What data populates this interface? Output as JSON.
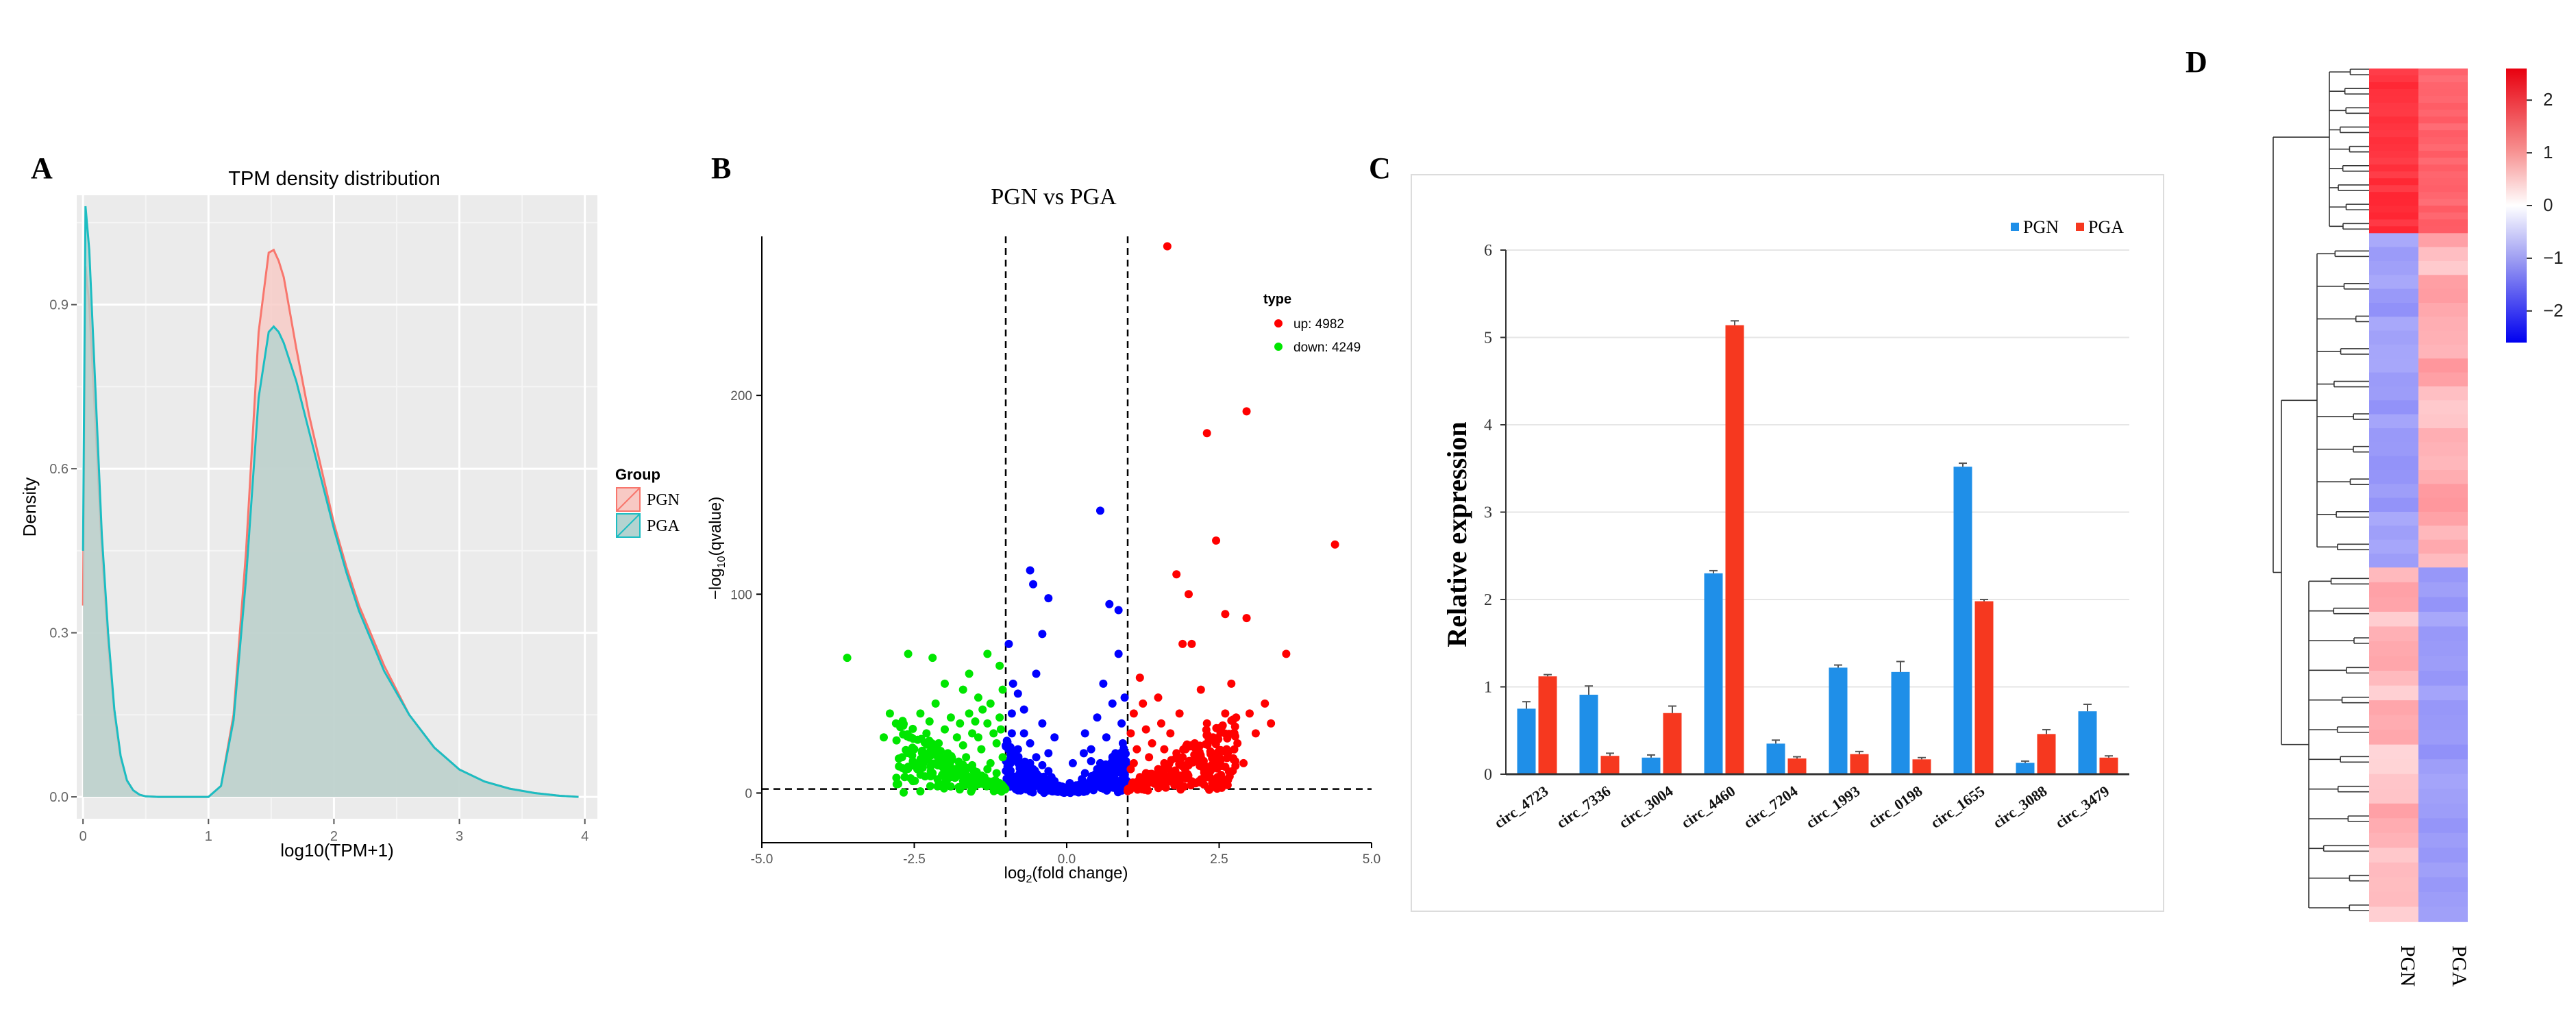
{
  "panels": {
    "a": "A",
    "b": "B",
    "c": "C",
    "d": "D"
  },
  "chart_data": [
    {
      "type": "area",
      "panel": "A",
      "title": "TPM density distribution",
      "xlabel": "log10(TPM+1)",
      "ylabel": "Density",
      "xlim": [
        -0.05,
        4.1
      ],
      "ylim": [
        -0.04,
        1.1
      ],
      "xticks": [
        "0",
        "1",
        "2",
        "3",
        "4"
      ],
      "yticks": [
        "0.0",
        "0.3",
        "0.6",
        "0.9"
      ],
      "legend": {
        "title": "Group",
        "position": "right",
        "items": [
          "PGN",
          "PGA"
        ]
      },
      "series": [
        {
          "name": "PGN",
          "color": "#F8766D",
          "fill": "#F8C9C4",
          "x": [
            0,
            0.02,
            0.05,
            0.1,
            0.15,
            0.2,
            0.25,
            0.3,
            0.35,
            0.4,
            0.45,
            0.5,
            0.6,
            0.8,
            1.0,
            1.1,
            1.2,
            1.3,
            1.4,
            1.48,
            1.52,
            1.56,
            1.6,
            1.7,
            1.8,
            1.9,
            2.0,
            2.1,
            2.2,
            2.4,
            2.6,
            2.8,
            3.0,
            3.2,
            3.4,
            3.6,
            3.8,
            3.95
          ],
          "y": [
            0.35,
            0.97,
            0.9,
            0.68,
            0.45,
            0.28,
            0.15,
            0.07,
            0.03,
            0.012,
            0.004,
            0.001,
            0,
            0,
            0,
            0.02,
            0.15,
            0.45,
            0.85,
            0.995,
            1.0,
            0.98,
            0.95,
            0.82,
            0.7,
            0.6,
            0.5,
            0.42,
            0.35,
            0.24,
            0.15,
            0.09,
            0.05,
            0.028,
            0.015,
            0.007,
            0.002,
            0
          ]
        },
        {
          "name": "PGA",
          "color": "#1CBDC2",
          "fill": "#B4D3D0",
          "x": [
            0,
            0.02,
            0.05,
            0.1,
            0.15,
            0.2,
            0.25,
            0.3,
            0.35,
            0.4,
            0.45,
            0.5,
            0.6,
            0.8,
            1.0,
            1.1,
            1.2,
            1.3,
            1.4,
            1.48,
            1.52,
            1.56,
            1.6,
            1.7,
            1.8,
            1.9,
            2.0,
            2.1,
            2.2,
            2.4,
            2.6,
            2.8,
            3.0,
            3.2,
            3.4,
            3.6,
            3.8,
            3.95
          ],
          "y": [
            0.45,
            1.08,
            1.0,
            0.74,
            0.48,
            0.3,
            0.16,
            0.075,
            0.03,
            0.012,
            0.004,
            0.001,
            0,
            0,
            0,
            0.02,
            0.14,
            0.4,
            0.73,
            0.85,
            0.86,
            0.85,
            0.83,
            0.76,
            0.67,
            0.58,
            0.49,
            0.41,
            0.34,
            0.23,
            0.15,
            0.09,
            0.05,
            0.028,
            0.015,
            0.007,
            0.002,
            0
          ]
        }
      ]
    },
    {
      "type": "scatter",
      "panel": "B",
      "title": "PGN vs PGA",
      "xlabel_pre": "log",
      "xlabel_sub": "2",
      "xlabel_post": "(fold change)",
      "ylabel_pre": "−log",
      "ylabel_sub": "10",
      "ylabel_post": "(qvalue)",
      "xlim": [
        -5,
        5
      ],
      "ylim": [
        -25,
        280
      ],
      "xticks": [
        "-5.0",
        "-2.5",
        "0.0",
        "2.5",
        "5.0"
      ],
      "yticks": [
        "0",
        "100",
        "200"
      ],
      "fc_threshold": [
        -1,
        1
      ],
      "q_threshold": 2,
      "legend": {
        "title": "type",
        "position": "top-right",
        "items": [
          "up: 4982",
          "down: 4249"
        ]
      },
      "colors": {
        "up": "#FF0000",
        "down": "#00E600",
        "ns": "#0000FF"
      },
      "up_points": [
        [
          1.65,
          275
        ],
        [
          2.95,
          192
        ],
        [
          2.3,
          181
        ],
        [
          2.45,
          127
        ],
        [
          4.4,
          125
        ],
        [
          2.95,
          88
        ],
        [
          1.8,
          110
        ],
        [
          2.0,
          100
        ],
        [
          2.6,
          90
        ],
        [
          1.9,
          75
        ],
        [
          2.05,
          75
        ],
        [
          3.6,
          70
        ],
        [
          3.25,
          45
        ],
        [
          1.2,
          58
        ],
        [
          1.5,
          48
        ],
        [
          2.2,
          52
        ],
        [
          2.7,
          55
        ],
        [
          3.0,
          40
        ],
        [
          1.1,
          40
        ],
        [
          1.3,
          32
        ],
        [
          1.7,
          30
        ],
        [
          2.4,
          28
        ],
        [
          1.15,
          22
        ],
        [
          1.35,
          18
        ],
        [
          1.6,
          15
        ],
        [
          1.9,
          18
        ],
        [
          2.1,
          25
        ],
        [
          2.5,
          20
        ],
        [
          2.8,
          25
        ],
        [
          3.1,
          30
        ],
        [
          1.05,
          12
        ],
        [
          1.2,
          8
        ],
        [
          1.45,
          6
        ],
        [
          1.75,
          10
        ],
        [
          2.25,
          12
        ],
        [
          1.25,
          45
        ],
        [
          1.55,
          35
        ],
        [
          2.9,
          15
        ],
        [
          1.05,
          30
        ],
        [
          1.4,
          25
        ],
        [
          1.85,
          40
        ],
        [
          2.3,
          35
        ],
        [
          1.95,
          22
        ],
        [
          2.6,
          40
        ],
        [
          1.1,
          15
        ],
        [
          1.3,
          10
        ],
        [
          1.6,
          22
        ],
        [
          2.0,
          14
        ],
        [
          2.35,
          8
        ],
        [
          1.5,
          12
        ],
        [
          1.8,
          20
        ],
        [
          2.2,
          18
        ],
        [
          1.08,
          5
        ],
        [
          1.28,
          4
        ],
        [
          1.65,
          6
        ],
        [
          2.75,
          30
        ],
        [
          3.35,
          35
        ]
      ],
      "down_points": [
        [
          -3.6,
          68
        ],
        [
          -2.6,
          70
        ],
        [
          -2.2,
          68
        ],
        [
          -1.3,
          70
        ],
        [
          -1.1,
          64
        ],
        [
          -2.0,
          55
        ],
        [
          -1.7,
          52
        ],
        [
          -1.45,
          48
        ],
        [
          -2.8,
          35
        ],
        [
          -2.4,
          40
        ],
        [
          -3.0,
          28
        ],
        [
          -2.3,
          30
        ],
        [
          -1.9,
          38
        ],
        [
          -1.6,
          40
        ],
        [
          -1.25,
          45
        ],
        [
          -2.5,
          22
        ],
        [
          -2.1,
          25
        ],
        [
          -1.8,
          28
        ],
        [
          -1.55,
          30
        ],
        [
          -1.3,
          35
        ],
        [
          -1.1,
          38
        ],
        [
          -2.7,
          18
        ],
        [
          -2.35,
          15
        ],
        [
          -1.95,
          20
        ],
        [
          -1.65,
          18
        ],
        [
          -1.4,
          22
        ],
        [
          -1.15,
          25
        ],
        [
          -2.2,
          10
        ],
        [
          -1.85,
          12
        ],
        [
          -1.5,
          10
        ],
        [
          -1.25,
          15
        ],
        [
          -1.05,
          18
        ],
        [
          -1.7,
          6
        ],
        [
          -1.35,
          8
        ],
        [
          -1.1,
          5
        ],
        [
          -2.55,
          28
        ],
        [
          -2.0,
          32
        ],
        [
          -1.75,
          35
        ],
        [
          -1.45,
          28
        ],
        [
          -1.2,
          30
        ],
        [
          -2.9,
          40
        ],
        [
          -2.15,
          45
        ],
        [
          -1.6,
          60
        ],
        [
          -1.05,
          52
        ],
        [
          -1.3,
          12
        ],
        [
          -1.9,
          8
        ],
        [
          -2.45,
          12
        ],
        [
          -1.55,
          14
        ],
        [
          -1.15,
          10
        ],
        [
          -2.05,
          18
        ],
        [
          -1.38,
          42
        ],
        [
          -1.7,
          24
        ],
        [
          -2.25,
          36
        ],
        [
          -1.08,
          32
        ],
        [
          -1.5,
          36
        ]
      ],
      "ns_points": [
        [
          -0.6,
          112
        ],
        [
          -0.55,
          105
        ],
        [
          -0.3,
          98
        ],
        [
          0.55,
          142
        ],
        [
          0.7,
          95
        ],
        [
          0.85,
          92
        ],
        [
          -0.4,
          80
        ],
        [
          -0.95,
          75
        ],
        [
          -0.5,
          60
        ],
        [
          -0.8,
          50
        ],
        [
          0.6,
          55
        ],
        [
          0.85,
          70
        ],
        [
          -0.7,
          42
        ],
        [
          -0.4,
          35
        ],
        [
          -0.2,
          28
        ],
        [
          0.3,
          30
        ],
        [
          0.5,
          38
        ],
        [
          0.75,
          45
        ],
        [
          -0.9,
          30
        ],
        [
          -0.6,
          25
        ],
        [
          -0.3,
          20
        ],
        [
          0.1,
          15
        ],
        [
          0.4,
          22
        ],
        [
          0.65,
          28
        ],
        [
          0.9,
          35
        ],
        [
          -0.85,
          18
        ],
        [
          -0.55,
          12
        ],
        [
          -0.25,
          8
        ],
        [
          0.05,
          5
        ],
        [
          0.3,
          10
        ],
        [
          0.55,
          15
        ],
        [
          0.8,
          20
        ],
        [
          -0.75,
          8
        ],
        [
          -0.45,
          5
        ],
        [
          -0.15,
          3
        ],
        [
          0.15,
          2
        ],
        [
          0.35,
          4
        ],
        [
          0.6,
          8
        ],
        [
          0.85,
          12
        ],
        [
          -0.95,
          10
        ],
        [
          -0.65,
          4
        ],
        [
          -0.35,
          2
        ],
        [
          0.2,
          1
        ],
        [
          0.45,
          3
        ],
        [
          0.7,
          6
        ],
        [
          0.95,
          8
        ],
        [
          -0.9,
          40
        ],
        [
          -0.7,
          30
        ],
        [
          -0.5,
          18
        ],
        [
          -0.2,
          6
        ],
        [
          0.0,
          2
        ],
        [
          0.25,
          7
        ],
        [
          0.5,
          12
        ],
        [
          0.75,
          18
        ],
        [
          0.92,
          25
        ],
        [
          -0.8,
          22
        ],
        [
          -0.6,
          15
        ],
        [
          -0.1,
          1
        ],
        [
          0.1,
          3
        ],
        [
          0.65,
          10
        ],
        [
          -0.88,
          55
        ],
        [
          0.95,
          48
        ],
        [
          -0.4,
          14
        ],
        [
          0.4,
          16
        ],
        [
          -0.3,
          11
        ],
        [
          0.28,
          20
        ],
        [
          -0.05,
          1
        ],
        [
          0.05,
          1
        ],
        [
          0.92,
          15
        ],
        [
          -0.92,
          15
        ]
      ]
    },
    {
      "type": "bar",
      "panel": "C",
      "ylabel": "Relative expression",
      "ylim": [
        0,
        6
      ],
      "yticks": [
        "0",
        "1",
        "2",
        "3",
        "4",
        "5",
        "6"
      ],
      "categories": [
        "circ_4723",
        "circ_7336",
        "circ_3004",
        "circ_4460",
        "circ_7204",
        "circ_1993",
        "circ_0198",
        "circ_1655",
        "circ_3088",
        "circ_3479"
      ],
      "legend": {
        "position": "top-right"
      },
      "series": [
        {
          "name": "PGN",
          "color": "#1F8FE8",
          "values": [
            0.75,
            0.91,
            0.19,
            2.3,
            0.35,
            1.22,
            1.17,
            3.52,
            0.13,
            0.72
          ],
          "errors": [
            0.08,
            0.1,
            0.03,
            0.03,
            0.04,
            0.03,
            0.12,
            0.04,
            0.02,
            0.08
          ]
        },
        {
          "name": "PGA",
          "color": "#F6381F",
          "values": [
            1.12,
            0.21,
            0.7,
            5.14,
            0.18,
            0.23,
            0.17,
            1.98,
            0.46,
            0.19
          ],
          "errors": [
            0.02,
            0.03,
            0.08,
            0.05,
            0.02,
            0.03,
            0.02,
            0.02,
            0.05,
            0.02
          ]
        }
      ]
    },
    {
      "type": "heatmap",
      "panel": "D",
      "columns": [
        "PGN",
        "PGA"
      ],
      "colorbar": {
        "ticks": [
          "2",
          "1",
          "0",
          "−1",
          "−2"
        ],
        "range": [
          -2.6,
          2.6
        ]
      },
      "blocks": [
        {
          "rows": 0.193,
          "values": [
            2.1,
            1.6
          ]
        },
        {
          "rows": 0.392,
          "values": [
            -1.0,
            0.8
          ]
        },
        {
          "rows": 0.415,
          "values": [
            0.7,
            -1.0
          ]
        }
      ]
    }
  ]
}
